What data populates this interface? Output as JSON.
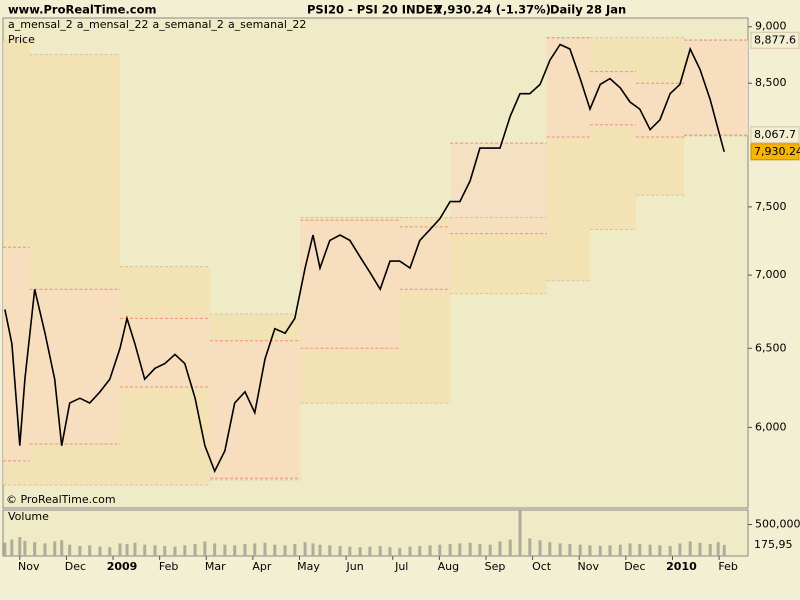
{
  "header": {
    "site": "www.ProRealTime.com",
    "symbol": "PSI20 - PSI 20 INDEX",
    "quote": "7,930.24 (-1.37%)",
    "period": "Daily",
    "date": "28 Jan"
  },
  "chart_data": [
    {
      "type": "line",
      "annotation": "© ProRealTime.com",
      "log_scale": true,
      "xlim": [
        -0.36,
        15.62
      ],
      "ylim": [
        5530,
        9080
      ],
      "yticks": [
        {
          "value": 6000,
          "label": "6,000"
        },
        {
          "value": 6500,
          "label": "6,500"
        },
        {
          "value": 7000,
          "label": "7,000"
        },
        {
          "value": 7500,
          "label": "7,500"
        },
        {
          "value": 8500,
          "label": "8,500"
        },
        {
          "value": 9000,
          "label": "9,000"
        }
      ],
      "series": [
        {
          "name": "Price",
          "color": "#000000",
          "last_label": "7,930.24",
          "x": [
            -0.32,
            -0.17,
            0,
            0.11,
            0.32,
            0.54,
            0.75,
            0.9,
            1.07,
            1.29,
            1.5,
            1.72,
            1.93,
            2.15,
            2.3,
            2.47,
            2.68,
            2.9,
            3.11,
            3.33,
            3.54,
            3.76,
            3.97,
            4.18,
            4.4,
            4.61,
            4.83,
            5.04,
            5.26,
            5.47,
            5.69,
            5.9,
            6.12,
            6.29,
            6.44,
            6.65,
            6.87,
            7.08,
            7.3,
            7.51,
            7.73,
            7.94,
            8.15,
            8.37,
            8.58,
            8.8,
            9.01,
            9.23,
            9.44,
            9.66,
            9.87,
            10.09,
            10.3,
            10.52,
            10.73,
            10.94,
            11.16,
            11.37,
            11.59,
            11.8,
            12.02,
            12.23,
            12.45,
            12.66,
            12.88,
            13.09,
            13.3,
            13.52,
            13.73,
            13.95,
            14.16,
            14.38,
            14.59,
            14.81,
            14.98,
            15.11
          ],
          "values": [
            6760,
            6530,
            5890,
            6300,
            6900,
            6600,
            6300,
            5890,
            6150,
            6180,
            6150,
            6220,
            6300,
            6500,
            6700,
            6530,
            6300,
            6370,
            6400,
            6460,
            6400,
            6180,
            5890,
            5740,
            5860,
            6150,
            6220,
            6090,
            6430,
            6630,
            6600,
            6700,
            7050,
            7290,
            7050,
            7250,
            7290,
            7250,
            7130,
            7020,
            6900,
            7100,
            7100,
            7050,
            7250,
            7330,
            7410,
            7540,
            7540,
            7700,
            7960,
            7960,
            7960,
            8220,
            8410,
            8410,
            8490,
            8700,
            8840,
            8800,
            8540,
            8280,
            8490,
            8540,
            8460,
            8340,
            8280,
            8110,
            8190,
            8410,
            8490,
            8800,
            8620,
            8360,
            8110,
            7930.24
          ]
        },
        {
          "name": "a_mensal_2",
          "color": "#d9c3a3",
          "fill": "#f3dfae",
          "step": true,
          "last_label": "8,877.6",
          "x": [
            -0.36,
            0.21,
            2.15,
            4.08,
            6.02,
            8.15,
            9.23,
            11.3,
            12.23,
            13.22,
            14.25
          ],
          "values": [
            8880,
            8750,
            7060,
            6730,
            7420,
            7420,
            7420,
            8900,
            8900,
            8900,
            8877.6
          ]
        },
        {
          "name": "a_mensal_22",
          "color": "#d9c3a3",
          "fill": "#f3dfae",
          "step": true,
          "last_label": "8,067.7",
          "x": [
            -0.36,
            0.21,
            2.15,
            4.08,
            6.02,
            8.15,
            9.23,
            11.3,
            12.23,
            13.22,
            14.25
          ],
          "values": [
            5660,
            5660,
            5660,
            5690,
            6150,
            6150,
            6870,
            6960,
            7330,
            7590,
            8067.7
          ]
        },
        {
          "name": "a_semanal_2",
          "color": "#f08c8c",
          "fill": "#f7dcc2",
          "step": true,
          "x": [
            -0.36,
            0.21,
            2.15,
            4.08,
            6.02,
            8.15,
            9.23,
            11.3,
            12.23,
            13.22,
            14.25
          ],
          "values": [
            7200,
            6900,
            6700,
            6550,
            7400,
            7350,
            8000,
            8900,
            8600,
            8500,
            8880
          ]
        },
        {
          "name": "a_semanal_22",
          "color": "#f08c8c",
          "fill": "#f7dcc2",
          "step": true,
          "x": [
            -0.36,
            0.21,
            2.15,
            4.08,
            6.02,
            8.15,
            9.23,
            11.3,
            12.23,
            13.22,
            14.25
          ],
          "values": [
            5800,
            5900,
            6250,
            5700,
            6500,
            6900,
            7300,
            8050,
            8150,
            8050,
            8060
          ]
        }
      ]
    },
    {
      "type": "bar",
      "title": "Volume",
      "color": "#b0ab9a",
      "last_label": "175,95",
      "xlim": [
        -0.36,
        15.62
      ],
      "ylim": [
        0,
        730000
      ],
      "yticks": [
        {
          "value": 500000,
          "label": "500,000"
        }
      ],
      "xticks": [
        {
          "value": 0,
          "label": "Nov"
        },
        {
          "value": 1,
          "label": "Dec"
        },
        {
          "value": 2,
          "label": "2009"
        },
        {
          "value": 3,
          "label": "Feb"
        },
        {
          "value": 4,
          "label": "Mar"
        },
        {
          "value": 5,
          "label": "Apr"
        },
        {
          "value": 6,
          "label": "May"
        },
        {
          "value": 7,
          "label": "Jun"
        },
        {
          "value": 8,
          "label": "Jul"
        },
        {
          "value": 9,
          "label": "Aug"
        },
        {
          "value": 10,
          "label": "Sep"
        },
        {
          "value": 11,
          "label": "Oct"
        },
        {
          "value": 12,
          "label": "Nov"
        },
        {
          "value": 13,
          "label": "Dec"
        },
        {
          "value": 14,
          "label": "2010"
        },
        {
          "value": 15,
          "label": "Feb"
        }
      ],
      "x": [
        -0.32,
        -0.17,
        0,
        0.11,
        0.32,
        0.54,
        0.75,
        0.9,
        1.07,
        1.29,
        1.5,
        1.72,
        1.93,
        2.15,
        2.3,
        2.47,
        2.68,
        2.9,
        3.11,
        3.33,
        3.54,
        3.76,
        3.97,
        4.18,
        4.4,
        4.61,
        4.83,
        5.04,
        5.26,
        5.47,
        5.69,
        5.9,
        6.12,
        6.29,
        6.44,
        6.65,
        6.87,
        7.08,
        7.3,
        7.51,
        7.73,
        7.94,
        8.15,
        8.37,
        8.58,
        8.8,
        9.01,
        9.23,
        9.44,
        9.66,
        9.87,
        10.09,
        10.3,
        10.52,
        10.73,
        10.94,
        11.16,
        11.37,
        11.59,
        11.8,
        12.02,
        12.23,
        12.45,
        12.66,
        12.88,
        13.09,
        13.3,
        13.52,
        13.73,
        13.95,
        14.16,
        14.38,
        14.59,
        14.81,
        14.98,
        15.11
      ],
      "values": [
        210000,
        260000,
        300000,
        240000,
        220000,
        200000,
        230000,
        250000,
        180000,
        160000,
        170000,
        150000,
        140000,
        200000,
        190000,
        210000,
        180000,
        170000,
        160000,
        150000,
        170000,
        190000,
        230000,
        200000,
        180000,
        170000,
        190000,
        200000,
        210000,
        180000,
        170000,
        190000,
        220000,
        200000,
        180000,
        170000,
        160000,
        150000,
        140000,
        150000,
        160000,
        140000,
        130000,
        150000,
        160000,
        170000,
        180000,
        190000,
        200000,
        210000,
        190000,
        180000,
        230000,
        260000,
        720000,
        280000,
        250000,
        220000,
        200000,
        190000,
        180000,
        170000,
        160000,
        170000,
        180000,
        200000,
        190000,
        180000,
        170000,
        160000,
        200000,
        230000,
        210000,
        190000,
        220000,
        175950
      ]
    }
  ]
}
